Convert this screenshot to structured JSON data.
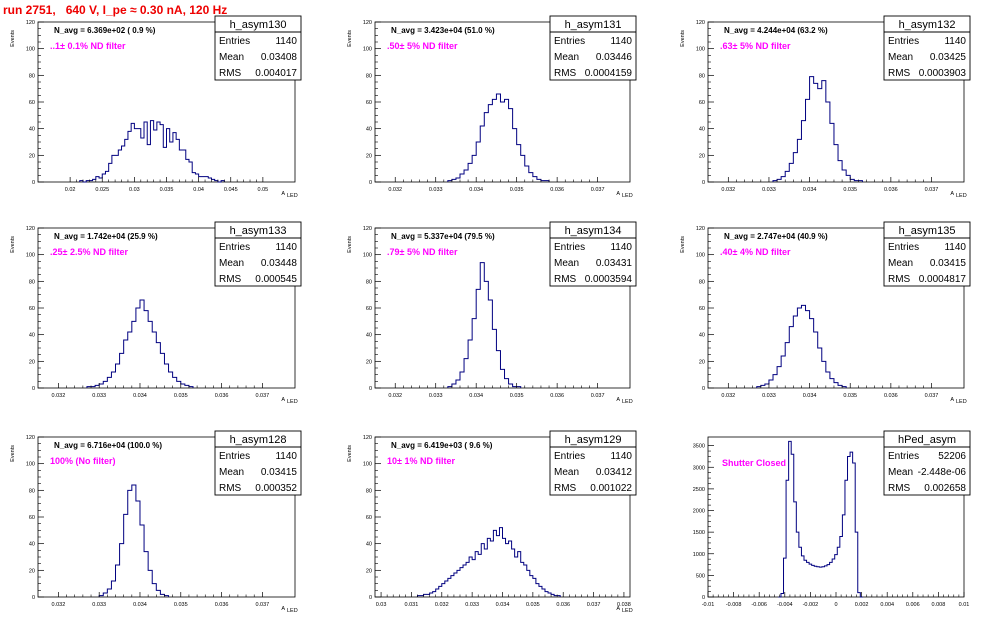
{
  "page_title": "run 2751,   640 V, I_pe ≈ 0.30 nA, 120 Hz",
  "colors": {
    "title": "#ee0000",
    "histogram": "#000080",
    "annotation": "#ff00ff"
  },
  "stats_labels": {
    "entries": "Entries",
    "mean": "Mean",
    "rms": "RMS"
  },
  "chart_data": [
    {
      "type": "histogram",
      "name": "h_asym130",
      "navg": "N_avg = 6.369e+02 ( 0.9 %)",
      "note": "..1± 0.1% ND filter",
      "stats": {
        "entries": "1140",
        "mean": "0.03408",
        "rms": "0.004017"
      },
      "ylabel": "Events",
      "xlabel": "A",
      "xlim": [
        0.015,
        0.055
      ],
      "ylim": [
        0,
        120
      ],
      "xticks": [
        0.02,
        0.025,
        0.03,
        0.035,
        0.04,
        0.045,
        0.05
      ],
      "xtick_labels": [
        "0.02",
        "0.025",
        "0.03",
        "0.035",
        "0.04",
        "0.045",
        "0.05"
      ],
      "yticks": [
        0,
        20,
        40,
        60,
        80,
        100,
        120
      ],
      "bins": {
        "start": 0.0215,
        "width": 0.0005,
        "counts": [
          1,
          0,
          1,
          1,
          2,
          4,
          3,
          6,
          8,
          14,
          20,
          20,
          24,
          27,
          32,
          38,
          44,
          40,
          40,
          33,
          45,
          28,
          46,
          39,
          45,
          43,
          26,
          40,
          30,
          37,
          32,
          24,
          24,
          17,
          15,
          7,
          6,
          4,
          4,
          4,
          3,
          2,
          1,
          0,
          1
        ]
      }
    },
    {
      "type": "histogram",
      "name": "h_asym131",
      "navg": "N_avg = 3.423e+04 (51.0 %)",
      "note": ".50± 5% ND filter",
      "stats": {
        "entries": "1140",
        "mean": "0.03446",
        "rms": "0.0004159"
      },
      "ylabel": "Events",
      "xlabel": "A",
      "xlim": [
        0.0315,
        0.0378
      ],
      "ylim": [
        0,
        120
      ],
      "xticks": [
        0.032,
        0.033,
        0.034,
        0.035,
        0.036,
        0.037
      ],
      "xtick_labels": [
        "0.032",
        "0.033",
        "0.034",
        "0.035",
        "0.036",
        "0.037"
      ],
      "yticks": [
        0,
        20,
        40,
        60,
        80,
        100,
        120
      ],
      "bins": {
        "start": 0.0333,
        "width": 0.0001,
        "counts": [
          1,
          2,
          3,
          6,
          9,
          14,
          20,
          30,
          42,
          52,
          58,
          62,
          66,
          60,
          62,
          55,
          40,
          28,
          20,
          12,
          7,
          4,
          2,
          1,
          1
        ]
      }
    },
    {
      "type": "histogram",
      "name": "h_asym132",
      "navg": "N_avg = 4.244e+04 (63.2 %)",
      "note": ".63± 5% ND filter",
      "stats": {
        "entries": "1140",
        "mean": "0.03425",
        "rms": "0.0003903"
      },
      "ylabel": "Events",
      "xlabel": "A",
      "xlim": [
        0.0315,
        0.0378
      ],
      "ylim": [
        0,
        120
      ],
      "xticks": [
        0.032,
        0.033,
        0.034,
        0.035,
        0.036,
        0.037
      ],
      "xtick_labels": [
        "0.032",
        "0.033",
        "0.034",
        "0.035",
        "0.036",
        "0.037"
      ],
      "yticks": [
        0,
        20,
        40,
        60,
        80,
        100,
        120
      ],
      "bins": {
        "start": 0.0331,
        "width": 0.0001,
        "counts": [
          1,
          2,
          4,
          8,
          14,
          22,
          32,
          46,
          62,
          79,
          74,
          70,
          76,
          60,
          44,
          28,
          16,
          9,
          5,
          2,
          1,
          1
        ]
      }
    },
    {
      "type": "histogram",
      "name": "h_asym133",
      "navg": "N_avg = 1.742e+04 (25.9 %)",
      "note": ".25± 2.5% ND filter",
      "stats": {
        "entries": "1140",
        "mean": "0.03448",
        "rms": "0.000545"
      },
      "ylabel": "Events",
      "xlabel": "A",
      "xlim": [
        0.0315,
        0.0378
      ],
      "ylim": [
        0,
        120
      ],
      "xticks": [
        0.032,
        0.033,
        0.034,
        0.035,
        0.036,
        0.037
      ],
      "xtick_labels": [
        "0.032",
        "0.033",
        "0.034",
        "0.035",
        "0.036",
        "0.037"
      ],
      "yticks": [
        0,
        20,
        40,
        60,
        80,
        100,
        120
      ],
      "bins": {
        "start": 0.0327,
        "width": 0.0001,
        "counts": [
          1,
          1,
          2,
          3,
          5,
          8,
          12,
          18,
          26,
          36,
          42,
          50,
          60,
          66,
          58,
          50,
          42,
          34,
          26,
          18,
          12,
          8,
          5,
          3,
          2,
          1
        ]
      }
    },
    {
      "type": "histogram",
      "name": "h_asym134",
      "navg": "N_avg = 5.337e+04 (79.5 %)",
      "note": ".79± 5% ND filter",
      "stats": {
        "entries": "1140",
        "mean": "0.03431",
        "rms": "0.0003594"
      },
      "ylabel": "Events",
      "xlabel": "A",
      "xlim": [
        0.0315,
        0.0378
      ],
      "ylim": [
        0,
        120
      ],
      "xticks": [
        0.032,
        0.033,
        0.034,
        0.035,
        0.036,
        0.037
      ],
      "xtick_labels": [
        "0.032",
        "0.033",
        "0.034",
        "0.035",
        "0.036",
        "0.037"
      ],
      "yticks": [
        0,
        20,
        40,
        60,
        80,
        100,
        120
      ],
      "bins": {
        "start": 0.0333,
        "width": 0.0001,
        "counts": [
          1,
          3,
          6,
          12,
          22,
          36,
          52,
          74,
          94,
          80,
          66,
          44,
          28,
          14,
          7,
          3,
          1,
          1
        ]
      }
    },
    {
      "type": "histogram",
      "name": "h_asym135",
      "navg": "N_avg = 2.747e+04 (40.9 %)",
      "note": ".40± 4% ND filter",
      "stats": {
        "entries": "1140",
        "mean": "0.03415",
        "rms": "0.0004817"
      },
      "ylabel": "Events",
      "xlabel": "A",
      "xlim": [
        0.0315,
        0.0378
      ],
      "ylim": [
        0,
        120
      ],
      "xticks": [
        0.032,
        0.033,
        0.034,
        0.035,
        0.036,
        0.037
      ],
      "xtick_labels": [
        "0.032",
        "0.033",
        "0.034",
        "0.035",
        "0.036",
        "0.037"
      ],
      "yticks": [
        0,
        20,
        40,
        60,
        80,
        100,
        120
      ],
      "bins": {
        "start": 0.0327,
        "width": 0.0001,
        "counts": [
          1,
          2,
          3,
          6,
          10,
          16,
          24,
          34,
          46,
          54,
          60,
          62,
          58,
          52,
          42,
          30,
          20,
          12,
          7,
          4,
          2,
          1
        ]
      }
    },
    {
      "type": "histogram",
      "name": "h_asym128",
      "navg": "N_avg = 6.716e+04 (100.0 %)",
      "note": "100% (No filter)",
      "stats": {
        "entries": "1140",
        "mean": "0.03415",
        "rms": "0.000352"
      },
      "ylabel": "Events",
      "xlabel": "A",
      "xlim": [
        0.0315,
        0.0378
      ],
      "ylim": [
        0,
        120
      ],
      "xticks": [
        0.032,
        0.033,
        0.034,
        0.035,
        0.036,
        0.037
      ],
      "xtick_labels": [
        "0.032",
        "0.033",
        "0.034",
        "0.035",
        "0.036",
        "0.037"
      ],
      "yticks": [
        0,
        20,
        40,
        60,
        80,
        100,
        120
      ],
      "bins": {
        "start": 0.033,
        "width": 0.0001,
        "counts": [
          1,
          3,
          6,
          12,
          24,
          40,
          62,
          80,
          84,
          72,
          54,
          34,
          20,
          10,
          5,
          2,
          1
        ]
      }
    },
    {
      "type": "histogram",
      "name": "h_asym129",
      "navg": "N_avg = 6.419e+03 ( 9.6 %)",
      "note": "10± 1% ND filter",
      "stats": {
        "entries": "1140",
        "mean": "0.03412",
        "rms": "0.001022"
      },
      "ylabel": "Events",
      "xlabel": "A",
      "xlim": [
        0.0298,
        0.0382
      ],
      "ylim": [
        0,
        120
      ],
      "xticks": [
        0.03,
        0.031,
        0.032,
        0.033,
        0.034,
        0.035,
        0.036,
        0.037,
        0.038
      ],
      "xtick_labels": [
        "0.03",
        "0.031",
        "0.032",
        "0.033",
        "0.034",
        "0.035",
        "0.036",
        "0.037",
        "0.038"
      ],
      "yticks": [
        0,
        20,
        40,
        60,
        80,
        100,
        120
      ],
      "bins": {
        "start": 0.0312,
        "width": 0.0001,
        "counts": [
          1,
          1,
          2,
          2,
          3,
          4,
          6,
          8,
          10,
          12,
          14,
          16,
          18,
          20,
          22,
          24,
          26,
          30,
          28,
          34,
          32,
          40,
          36,
          44,
          42,
          50,
          46,
          52,
          44,
          40,
          42,
          36,
          30,
          34,
          26,
          24,
          20,
          16,
          14,
          10,
          8,
          6,
          4,
          3,
          2,
          1,
          1
        ]
      }
    },
    {
      "type": "histogram",
      "name": "hPed_asym",
      "navg": "",
      "note": "Shutter Closed",
      "stats": {
        "entries": "52206",
        "mean": "-2.448e-06",
        "rms": "0.002658"
      },
      "ylabel": "",
      "xlabel": "",
      "xlim": [
        -0.01,
        0.01
      ],
      "ylim": [
        0,
        3700
      ],
      "xticks": [
        -0.01,
        -0.008,
        -0.006,
        -0.004,
        -0.002,
        0,
        0.002,
        0.004,
        0.006,
        0.008,
        0.01
      ],
      "xtick_labels": [
        "-0.01",
        "-0.008",
        "-0.006",
        "-0.004",
        "-0.002",
        "0",
        "0.002",
        "0.004",
        "0.006",
        "0.008",
        "0.01"
      ],
      "yticks": [
        0,
        500,
        1000,
        1500,
        2000,
        2500,
        3000,
        3500
      ],
      "bins": {
        "start": -0.0045,
        "width": 0.0002,
        "counts": [
          0,
          80,
          900,
          2700,
          3600,
          3300,
          2200,
          1500,
          1150,
          950,
          850,
          800,
          760,
          730,
          710,
          700,
          690,
          700,
          720,
          750,
          800,
          880,
          980,
          1150,
          1400,
          1900,
          2700,
          3250,
          3350,
          3100,
          1500,
          100,
          0
        ]
      }
    }
  ]
}
